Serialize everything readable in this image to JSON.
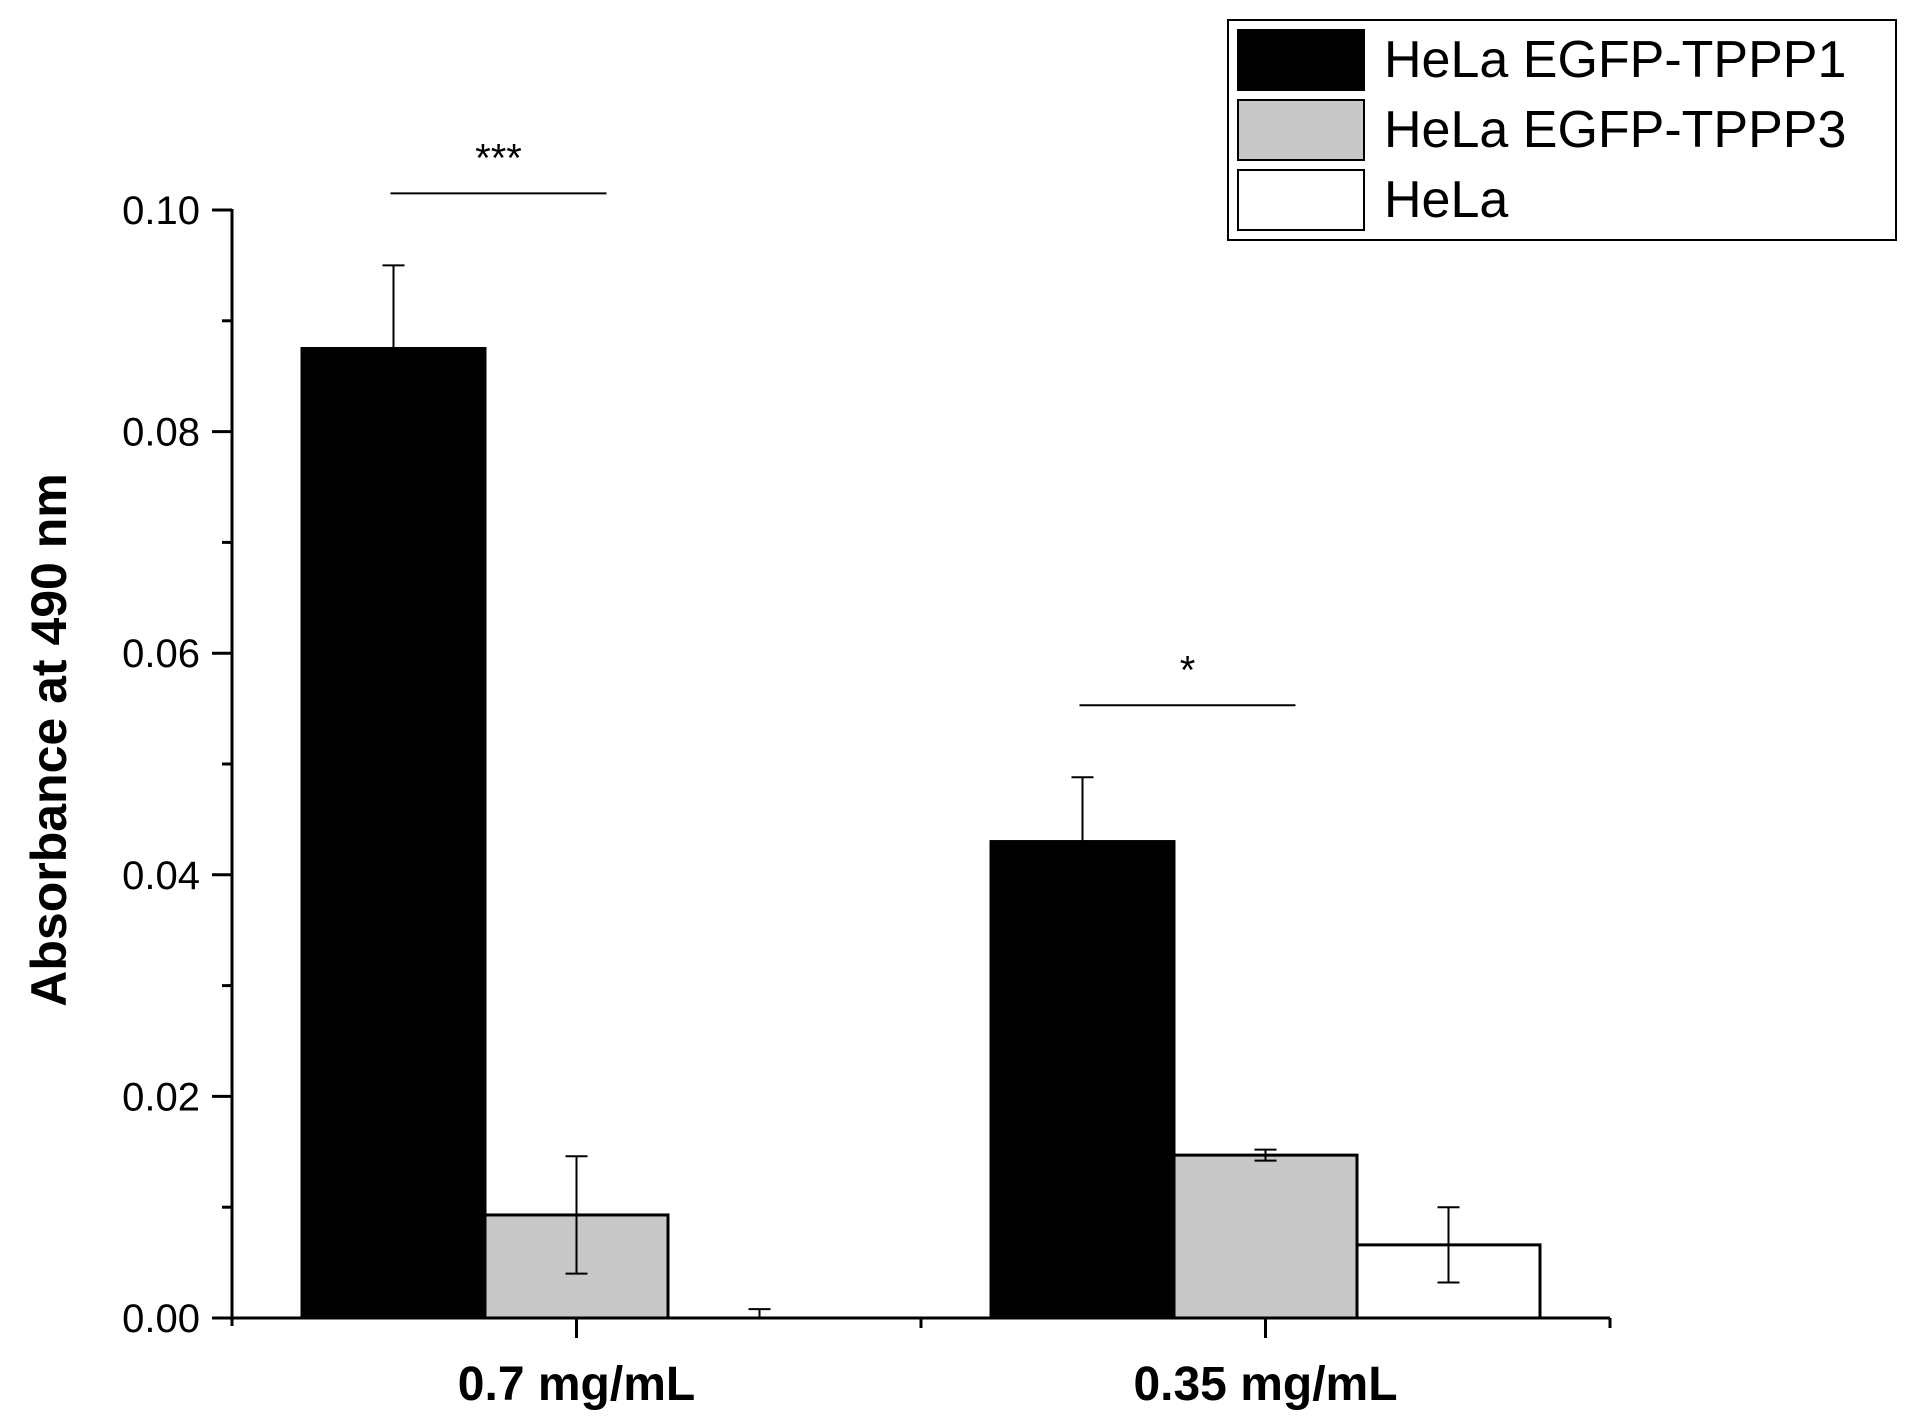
{
  "chart_data": {
    "type": "bar",
    "title": "",
    "xlabel": "",
    "ylabel": "Absorbance at 490 nm",
    "ylim": [
      0,
      0.1
    ],
    "yticks": [
      "0.00",
      "0.02",
      "0.04",
      "0.06",
      "0.08",
      "0.10"
    ],
    "ytick_values": [
      0,
      0.02,
      0.04,
      0.06,
      0.08,
      0.1
    ],
    "grid": false,
    "legend_position": "top-right",
    "categories": [
      "0.7 mg/mL",
      "0.35 mg/mL"
    ],
    "series": [
      {
        "name": "HeLa EGFP-TPPP1",
        "color": "#000000",
        "values": [
          0.0875,
          0.043
        ],
        "errors": [
          0.0075,
          0.0058
        ]
      },
      {
        "name": "HeLa EGFP-TPPP3",
        "color": "#c8c8c8",
        "values": [
          0.0093,
          0.0147
        ],
        "errors": [
          0.0053,
          0.0005
        ]
      },
      {
        "name": "HeLa",
        "color": "#ffffff",
        "values": [
          0.0,
          0.0066
        ],
        "errors": [
          0.0008,
          0.0034
        ]
      }
    ],
    "annotations": [
      {
        "text": "***",
        "category_index": 0,
        "between_series": [
          0,
          1
        ]
      },
      {
        "text": "*",
        "category_index": 1,
        "between_series": [
          0,
          1
        ]
      }
    ]
  }
}
